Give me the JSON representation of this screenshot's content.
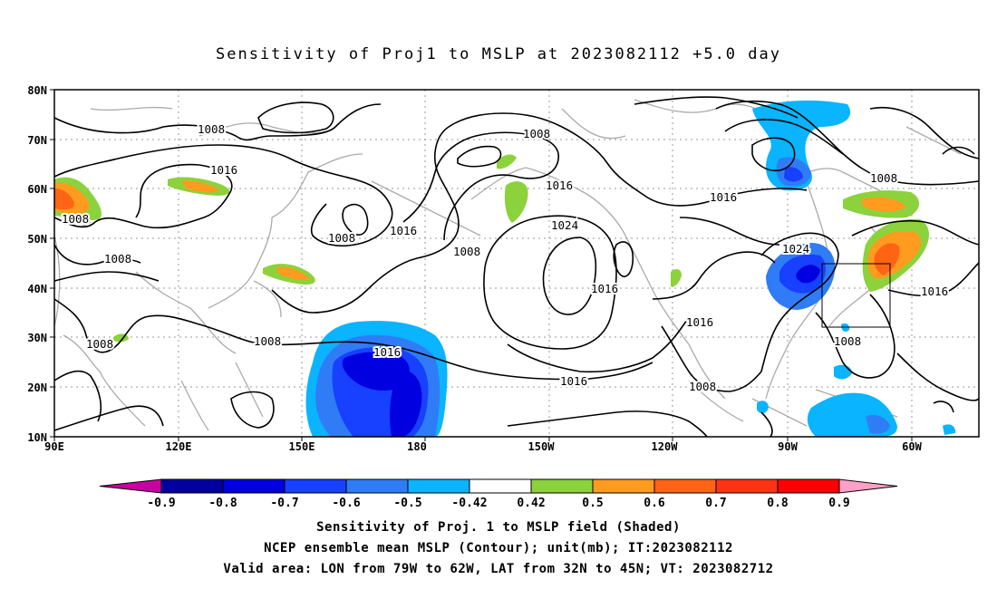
{
  "title": "Sensitivity of Proj1 to MSLP at 2023082112 +5.0 day",
  "axes": {
    "x_ticks": [
      "90E",
      "120E",
      "150E",
      "180",
      "150W",
      "120W",
      "90W",
      "60W"
    ],
    "y_ticks": [
      "80N",
      "70N",
      "60N",
      "50N",
      "40N",
      "30N",
      "20N",
      "10N"
    ]
  },
  "contour_labels": [
    {
      "text": "1008",
      "where": "north-central asia"
    },
    {
      "text": "1016",
      "where": "central siberia"
    },
    {
      "text": "1008",
      "where": "west edge 57N"
    },
    {
      "text": "1008",
      "where": "west edge 47N"
    },
    {
      "text": "1008",
      "where": "west edge 30N"
    },
    {
      "text": "1008",
      "where": "east asia 30N"
    },
    {
      "text": "1008",
      "where": "east siberia"
    },
    {
      "text": "1016",
      "where": "sea of okhotsk"
    },
    {
      "text": "1016",
      "where": "central pacific"
    },
    {
      "text": "1008",
      "where": "alaska low"
    },
    {
      "text": "1016",
      "where": "gulf of alaska"
    },
    {
      "text": "1008",
      "where": "bering low"
    },
    {
      "text": "1024",
      "where": "pacific high"
    },
    {
      "text": "1016",
      "where": "west coast"
    },
    {
      "text": "1016",
      "where": "subtropical pacific"
    },
    {
      "text": "1016",
      "where": "mexico"
    },
    {
      "text": "1008",
      "where": "eastern pacific"
    },
    {
      "text": "1016",
      "where": "canada"
    },
    {
      "text": "1024",
      "where": "great lakes high"
    },
    {
      "text": "1008",
      "where": "labrador"
    },
    {
      "text": "1008",
      "where": "southeast us"
    },
    {
      "text": "1016",
      "where": "atlantic"
    }
  ],
  "colorbar": {
    "labels": [
      "-0.9",
      "-0.8",
      "-0.7",
      "-0.6",
      "-0.5",
      "-0.42",
      "0.42",
      "0.5",
      "0.6",
      "0.7",
      "0.8",
      "0.9"
    ],
    "colors": [
      "#0000a0",
      "#0000e0",
      "#1840ff",
      "#2f7cf6",
      "#0ab4ff",
      "#ffffff",
      "#8cd23c",
      "#ff9b1e",
      "#ff6414",
      "#ff3214",
      "#ff0000"
    ],
    "under_color": "#c800a0",
    "over_color": "#ffa0c8"
  },
  "footer": {
    "line1": "Sensitivity of Proj. 1 to MSLP field (Shaded)",
    "line2": "NCEP ensemble mean MSLP (Contour); unit(mb); IT:2023082112",
    "line3": "Valid area: LON from 79W to 62W, LAT from 32N to 45N; VT: 2023082712"
  }
}
